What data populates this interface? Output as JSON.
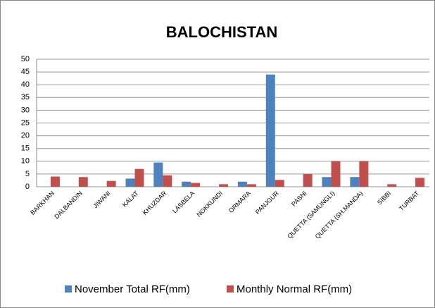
{
  "chart_data": {
    "type": "bar",
    "title": "BALOCHISTAN",
    "categories": [
      "BARKHAN",
      "DALBANDIN",
      "JIWANI",
      "KALAT",
      "KHUZDAR",
      "LASBELA",
      "NOKKUNDI",
      "ORMARA",
      "PANJGUR",
      "PASNI",
      "QUETTA (SAMUNGLI)",
      "QUETTA (SH.MANDA)",
      "SIBBI",
      "TURBAT"
    ],
    "series": [
      {
        "name": "November Total RF(mm)",
        "color": "#4f81bd",
        "values": [
          0,
          0,
          0,
          3.2,
          9.5,
          2,
          0,
          2,
          44,
          0,
          3.8,
          3.8,
          0,
          0
        ]
      },
      {
        "name": "Monthly Normal RF(mm)",
        "color": "#c0504d",
        "values": [
          4,
          3.8,
          2.3,
          7,
          4.5,
          1.5,
          1,
          1,
          2.7,
          5,
          10,
          10,
          1,
          3.5
        ]
      }
    ],
    "ylim": [
      0,
      50
    ],
    "yticks": [
      0,
      5,
      10,
      15,
      20,
      25,
      30,
      35,
      40,
      45,
      50
    ],
    "grid": true,
    "legend": "bottom"
  }
}
